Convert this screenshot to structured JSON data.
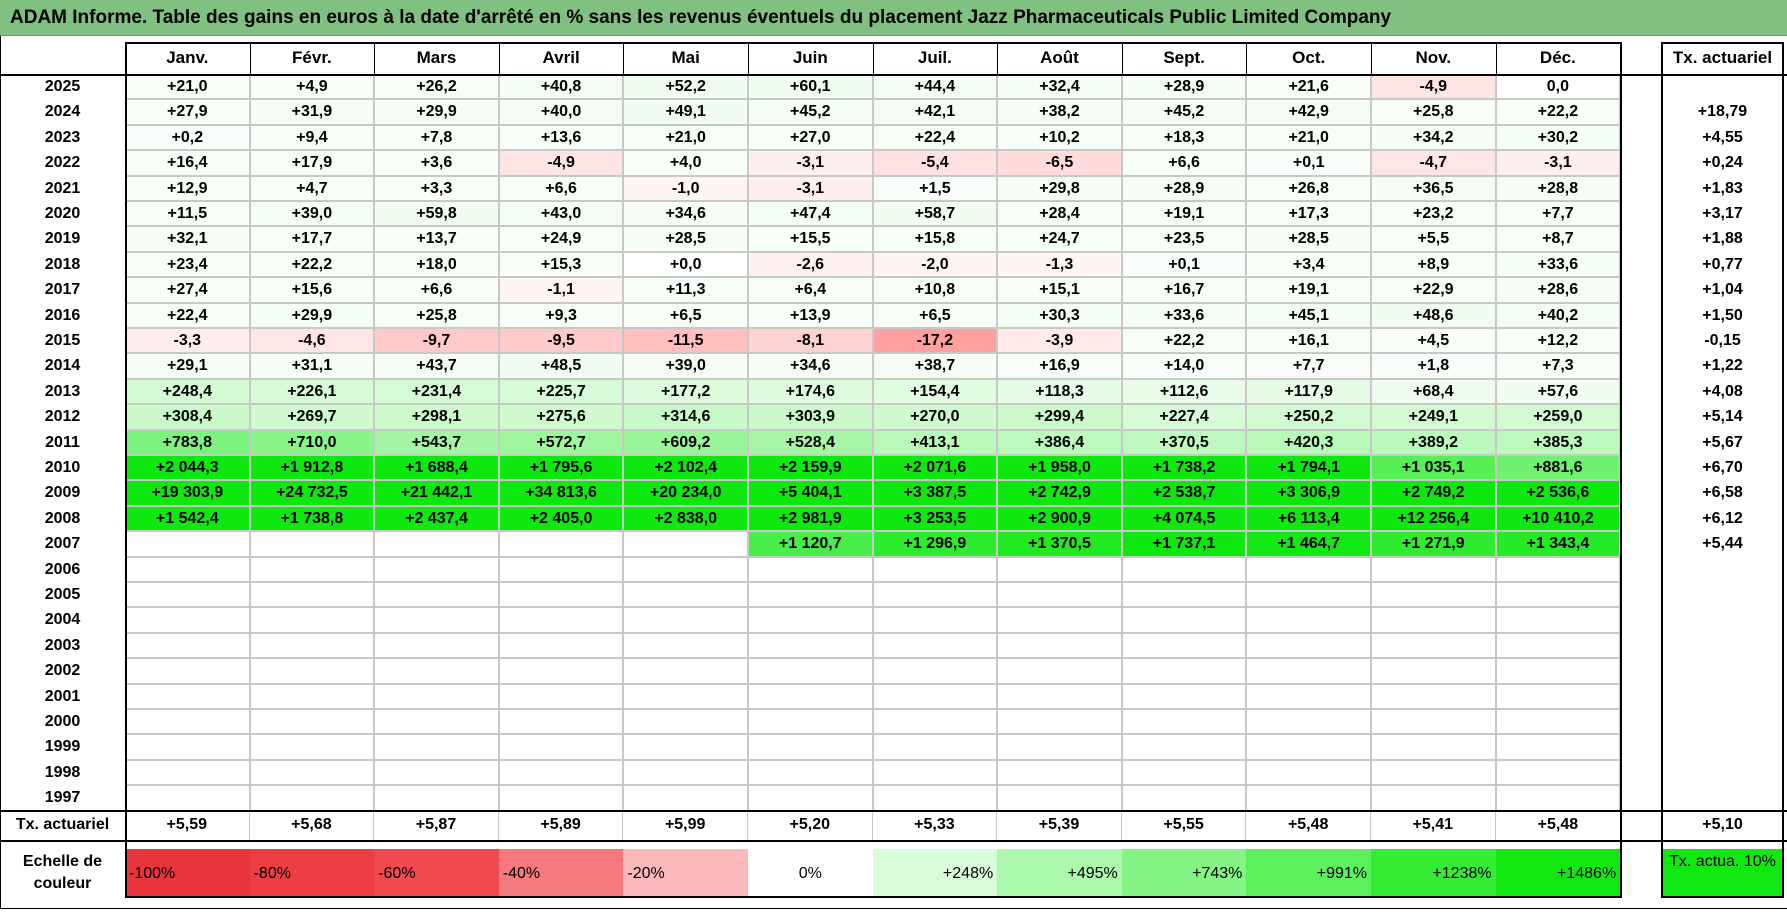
{
  "title": "ADAM Informe. Table des gains en euros à la date d'arrêté en % sans les revenus éventuels du placement Jazz Pharmaceuticals Public Limited Company",
  "chart_data": {
    "type": "table",
    "columns": [
      "Janv.",
      "Févr.",
      "Mars",
      "Avril",
      "Mai",
      "Juin",
      "Juil.",
      "Août",
      "Sept.",
      "Oct.",
      "Nov.",
      "Déc."
    ],
    "actuarial_header": "Tx. actuariel",
    "rows": [
      {
        "year": "2025",
        "values": [
          "+21,0",
          "+4,9",
          "+26,2",
          "+40,8",
          "+52,2",
          "+60,1",
          "+44,4",
          "+32,4",
          "+28,9",
          "+21,6",
          "-4,9",
          "0,0"
        ],
        "actuarial": ""
      },
      {
        "year": "2024",
        "values": [
          "+27,9",
          "+31,9",
          "+29,9",
          "+40,0",
          "+49,1",
          "+45,2",
          "+42,1",
          "+38,2",
          "+45,2",
          "+42,9",
          "+25,8",
          "+22,2"
        ],
        "actuarial": "+18,79"
      },
      {
        "year": "2023",
        "values": [
          "+0,2",
          "+9,4",
          "+7,8",
          "+13,6",
          "+21,0",
          "+27,0",
          "+22,4",
          "+10,2",
          "+18,3",
          "+21,0",
          "+34,2",
          "+30,2"
        ],
        "actuarial": "+4,55"
      },
      {
        "year": "2022",
        "values": [
          "+16,4",
          "+17,9",
          "+3,6",
          "-4,9",
          "+4,0",
          "-3,1",
          "-5,4",
          "-6,5",
          "+6,6",
          "+0,1",
          "-4,7",
          "-3,1"
        ],
        "actuarial": "+0,24"
      },
      {
        "year": "2021",
        "values": [
          "+12,9",
          "+4,7",
          "+3,3",
          "+6,6",
          "-1,0",
          "-3,1",
          "+1,5",
          "+29,8",
          "+28,9",
          "+26,8",
          "+36,5",
          "+28,8"
        ],
        "actuarial": "+1,83"
      },
      {
        "year": "2020",
        "values": [
          "+11,5",
          "+39,0",
          "+59,8",
          "+43,0",
          "+34,6",
          "+47,4",
          "+58,7",
          "+28,4",
          "+19,1",
          "+17,3",
          "+23,2",
          "+7,7"
        ],
        "actuarial": "+3,17"
      },
      {
        "year": "2019",
        "values": [
          "+32,1",
          "+17,7",
          "+13,7",
          "+24,9",
          "+28,5",
          "+15,5",
          "+15,8",
          "+24,7",
          "+23,5",
          "+28,5",
          "+5,5",
          "+8,7"
        ],
        "actuarial": "+1,88"
      },
      {
        "year": "2018",
        "values": [
          "+23,4",
          "+22,2",
          "+18,0",
          "+15,3",
          "+0,0",
          "-2,6",
          "-2,0",
          "-1,3",
          "+0,1",
          "+3,4",
          "+8,9",
          "+33,6"
        ],
        "actuarial": "+0,77"
      },
      {
        "year": "2017",
        "values": [
          "+27,4",
          "+15,6",
          "+6,6",
          "-1,1",
          "+11,3",
          "+6,4",
          "+10,8",
          "+15,1",
          "+16,7",
          "+19,1",
          "+22,9",
          "+28,6"
        ],
        "actuarial": "+1,04"
      },
      {
        "year": "2016",
        "values": [
          "+22,4",
          "+29,9",
          "+25,8",
          "+9,3",
          "+6,5",
          "+13,9",
          "+6,5",
          "+30,3",
          "+33,6",
          "+45,1",
          "+48,6",
          "+40,2"
        ],
        "actuarial": "+1,50"
      },
      {
        "year": "2015",
        "values": [
          "-3,3",
          "-4,6",
          "-9,7",
          "-9,5",
          "-11,5",
          "-8,1",
          "-17,2",
          "-3,9",
          "+22,2",
          "+16,1",
          "+4,5",
          "+12,2"
        ],
        "actuarial": "-0,15"
      },
      {
        "year": "2014",
        "values": [
          "+29,1",
          "+31,1",
          "+43,7",
          "+48,5",
          "+39,0",
          "+34,6",
          "+38,7",
          "+16,9",
          "+14,0",
          "+7,7",
          "+1,8",
          "+7,3"
        ],
        "actuarial": "+1,22"
      },
      {
        "year": "2013",
        "values": [
          "+248,4",
          "+226,1",
          "+231,4",
          "+225,7",
          "+177,2",
          "+174,6",
          "+154,4",
          "+118,3",
          "+112,6",
          "+117,9",
          "+68,4",
          "+57,6"
        ],
        "actuarial": "+4,08"
      },
      {
        "year": "2012",
        "values": [
          "+308,4",
          "+269,7",
          "+298,1",
          "+275,6",
          "+314,6",
          "+303,9",
          "+270,0",
          "+299,4",
          "+227,4",
          "+250,2",
          "+249,1",
          "+259,0"
        ],
        "actuarial": "+5,14"
      },
      {
        "year": "2011",
        "values": [
          "+783,8",
          "+710,0",
          "+543,7",
          "+572,7",
          "+609,2",
          "+528,4",
          "+413,1",
          "+386,4",
          "+370,5",
          "+420,3",
          "+389,2",
          "+385,3"
        ],
        "actuarial": "+5,67"
      },
      {
        "year": "2010",
        "values": [
          "+2 044,3",
          "+1 912,8",
          "+1 688,4",
          "+1 795,6",
          "+2 102,4",
          "+2 159,9",
          "+2 071,6",
          "+1 958,0",
          "+1 738,2",
          "+1 794,1",
          "+1 035,1",
          "+881,6"
        ],
        "actuarial": "+6,70"
      },
      {
        "year": "2009",
        "values": [
          "+19 303,9",
          "+24 732,5",
          "+21 442,1",
          "+34 813,6",
          "+20 234,0",
          "+5 404,1",
          "+3 387,5",
          "+2 742,9",
          "+2 538,7",
          "+3 306,9",
          "+2 749,2",
          "+2 536,6"
        ],
        "actuarial": "+6,58"
      },
      {
        "year": "2008",
        "values": [
          "+1 542,4",
          "+1 738,8",
          "+2 437,4",
          "+2 405,0",
          "+2 838,0",
          "+2 981,9",
          "+3 253,5",
          "+2 900,9",
          "+4 074,5",
          "+6 113,4",
          "+12 256,4",
          "+10 410,2"
        ],
        "actuarial": "+6,12"
      },
      {
        "year": "2007",
        "values": [
          "",
          "",
          "",
          "",
          "",
          "+1 120,7",
          "+1 296,9",
          "+1 370,5",
          "+1 737,1",
          "+1 464,7",
          "+1 271,9",
          "+1 343,4"
        ],
        "actuarial": "+5,44"
      },
      {
        "year": "2006",
        "values": [
          "",
          "",
          "",
          "",
          "",
          "",
          "",
          "",
          "",
          "",
          "",
          ""
        ],
        "actuarial": ""
      },
      {
        "year": "2005",
        "values": [
          "",
          "",
          "",
          "",
          "",
          "",
          "",
          "",
          "",
          "",
          "",
          ""
        ],
        "actuarial": ""
      },
      {
        "year": "2004",
        "values": [
          "",
          "",
          "",
          "",
          "",
          "",
          "",
          "",
          "",
          "",
          "",
          ""
        ],
        "actuarial": ""
      },
      {
        "year": "2003",
        "values": [
          "",
          "",
          "",
          "",
          "",
          "",
          "",
          "",
          "",
          "",
          "",
          ""
        ],
        "actuarial": ""
      },
      {
        "year": "2002",
        "values": [
          "",
          "",
          "",
          "",
          "",
          "",
          "",
          "",
          "",
          "",
          "",
          ""
        ],
        "actuarial": ""
      },
      {
        "year": "2001",
        "values": [
          "",
          "",
          "",
          "",
          "",
          "",
          "",
          "",
          "",
          "",
          "",
          ""
        ],
        "actuarial": ""
      },
      {
        "year": "2000",
        "values": [
          "",
          "",
          "",
          "",
          "",
          "",
          "",
          "",
          "",
          "",
          "",
          ""
        ],
        "actuarial": ""
      },
      {
        "year": "1999",
        "values": [
          "",
          "",
          "",
          "",
          "",
          "",
          "",
          "",
          "",
          "",
          "",
          ""
        ],
        "actuarial": ""
      },
      {
        "year": "1998",
        "values": [
          "",
          "",
          "",
          "",
          "",
          "",
          "",
          "",
          "",
          "",
          "",
          ""
        ],
        "actuarial": ""
      },
      {
        "year": "1997",
        "values": [
          "",
          "",
          "",
          "",
          "",
          "",
          "",
          "",
          "",
          "",
          "",
          ""
        ],
        "actuarial": ""
      }
    ],
    "footer": {
      "label": "Tx. actuariel",
      "values": [
        "+5,59",
        "+5,68",
        "+5,87",
        "+5,89",
        "+5,99",
        "+5,20",
        "+5,33",
        "+5,39",
        "+5,55",
        "+5,48",
        "+5,41",
        "+5,48"
      ],
      "actuarial": "+5,10"
    },
    "color_scale": {
      "label": "Echelle de couleur",
      "steps": [
        {
          "label": "-100%",
          "color": "#e8343c"
        },
        {
          "label": "-80%",
          "color": "#ec3c44"
        },
        {
          "label": "-60%",
          "color": "#f04a50"
        },
        {
          "label": "-40%",
          "color": "#f47a7e"
        },
        {
          "label": "-20%",
          "color": "#fab8ba"
        },
        {
          "label": "0%",
          "color": "#ffffff"
        },
        {
          "label": "+248%",
          "color": "#d8fcd8"
        },
        {
          "label": "+495%",
          "color": "#acf8ac"
        },
        {
          "label": "+743%",
          "color": "#84f484"
        },
        {
          "label": "+991%",
          "color": "#5cf05c"
        },
        {
          "label": "+1238%",
          "color": "#34ec34"
        },
        {
          "label": "+1486%",
          "color": "#10e810"
        }
      ],
      "actuarial_label": "Tx. actua. 10%",
      "actuarial_color": "#10e810"
    }
  }
}
